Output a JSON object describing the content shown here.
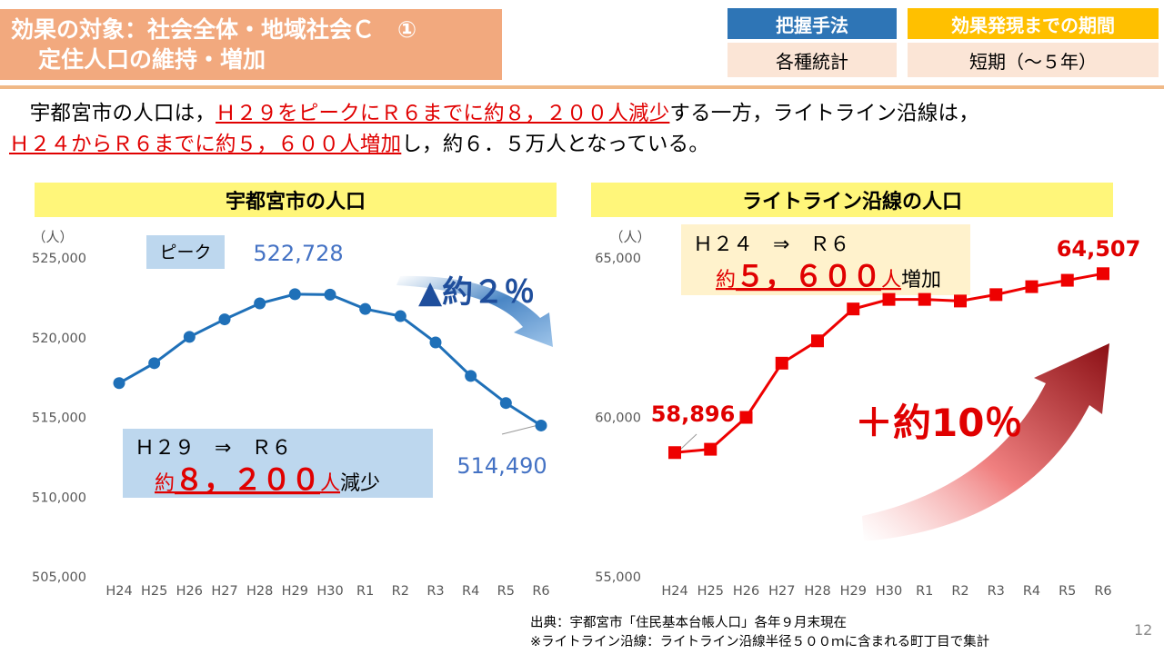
{
  "header": {
    "title_line1": "効果の対象：社会全体・地域社会Ｃ　①",
    "title_line2": "定住人口の維持・増加",
    "method_label": "把握手法",
    "method_value": "各種統計",
    "period_label": "効果発現までの期間",
    "period_value": "短期（～５年）"
  },
  "summary": {
    "p1": "　宇都宮市の人口は，",
    "p2": "Ｈ２９をピークにＲ６までに約８，２００人減少",
    "p3": "する一方，ライトライン沿線は，",
    "p4": "Ｈ２４からＲ６までに約５，６００人増加",
    "p5": "し，約６．５万人となっている。"
  },
  "colors": {
    "blue_series": "#1f70b8",
    "red_series": "#ee0000",
    "label_blue": "#4472c4",
    "highlight": "#e00000"
  },
  "chart_data": [
    {
      "type": "line",
      "title": "宇都宮市の人口",
      "ylabel": "（人）",
      "categories": [
        "H24",
        "H25",
        "H26",
        "H27",
        "H28",
        "H29",
        "H30",
        "R1",
        "R2",
        "R3",
        "R4",
        "R5",
        "R6"
      ],
      "values": [
        517150,
        518400,
        520050,
        521150,
        522150,
        522728,
        522700,
        521800,
        521350,
        519700,
        517600,
        515900,
        514490
      ],
      "ylim": [
        505000,
        525000
      ],
      "yticks": [
        "505,000",
        "510,000",
        "515,000",
        "520,000",
        "525,000"
      ],
      "annotations": {
        "peak_tag": "ピーク",
        "peak_value": "522,728",
        "end_value": "514,490",
        "change": "▲約２％",
        "box_line1": "Ｈ２９　⇒　Ｒ６",
        "box_pre": "約",
        "box_num": "８，２００",
        "box_unit": "人",
        "box_post": "減少"
      }
    },
    {
      "type": "line",
      "title": "ライトライン沿線の人口",
      "ylabel": "（人）",
      "categories": [
        "H24",
        "H25",
        "H26",
        "H27",
        "H28",
        "H29",
        "H30",
        "R1",
        "R2",
        "R3",
        "R4",
        "R5",
        "R6"
      ],
      "values": [
        58896,
        59000,
        60000,
        61700,
        62400,
        63400,
        63700,
        63700,
        63650,
        63850,
        64100,
        64300,
        64507
      ],
      "ylim": [
        55000,
        65000
      ],
      "yticks": [
        "55,000",
        "60,000",
        "65,000"
      ],
      "annotations": {
        "start_value": "58,896",
        "end_value": "64,507",
        "change": "＋約10％",
        "box_line1": "Ｈ２４　⇒　Ｒ６",
        "box_pre": "約",
        "box_num": "５，６００",
        "box_unit": "人",
        "box_post": "増加"
      }
    }
  ],
  "footer": {
    "source": "出典：宇都宮市「住民基本台帳人口」各年９月末現在",
    "note": "※ライトライン沿線：ライトライン沿線半径５００ｍに含まれる町丁目で集計",
    "page": "12"
  }
}
